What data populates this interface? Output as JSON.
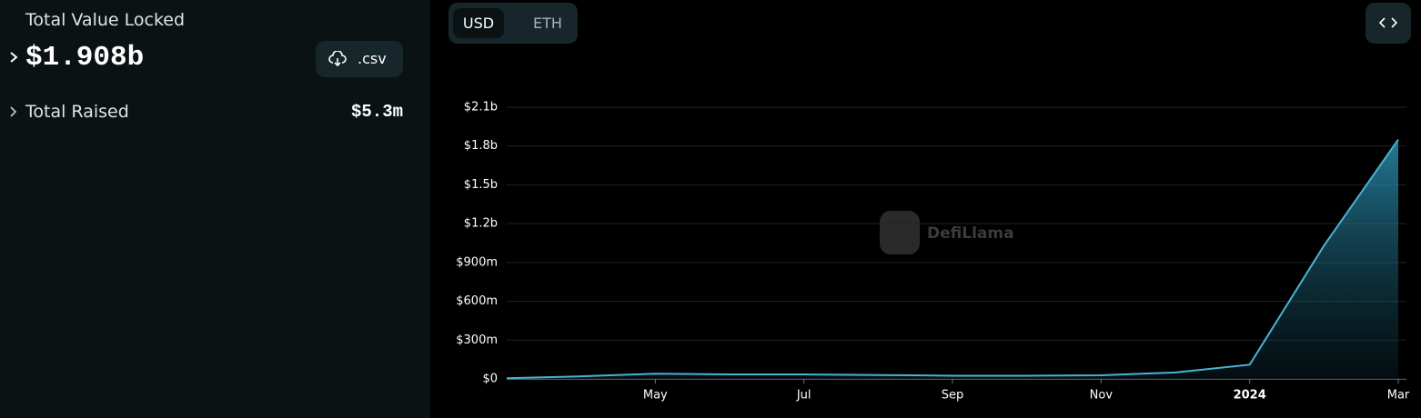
{
  "sidebar": {
    "tvl_label": "Total Value Locked",
    "tvl_value": "$1.908b",
    "csv_button": ".csv",
    "raised_label": "Total Raised",
    "raised_value": "$5.3m"
  },
  "toggle": [
    "USD",
    "ETH"
  ],
  "watermark": "DefiLlama",
  "chart_data": {
    "type": "area",
    "x": [
      "2023-03",
      "2023-04",
      "2023-05",
      "2023-06",
      "2023-07",
      "2023-08",
      "2023-09",
      "2023-10",
      "2023-11",
      "2023-12",
      "2024-01",
      "2024-02",
      "2024-03"
    ],
    "series": [
      {
        "name": "TVL",
        "color": "#4ab3d6",
        "values": [
          5000000,
          20000000,
          40000000,
          35000000,
          35000000,
          30000000,
          25000000,
          25000000,
          28000000,
          50000000,
          110000000,
          1030000000,
          1850000000
        ]
      }
    ],
    "xlim": [
      "2023-03",
      "2024-03"
    ],
    "xticks": [
      {
        "value": "2023-05",
        "label": "May"
      },
      {
        "value": "2023-07",
        "label": "Jul"
      },
      {
        "value": "2023-09",
        "label": "Sep"
      },
      {
        "value": "2023-11",
        "label": "Nov"
      },
      {
        "value": "2024-01",
        "label": "2024"
      },
      {
        "value": "2024-03",
        "label": "Mar"
      }
    ],
    "ylim": [
      0,
      2100000000
    ],
    "yticks": [
      {
        "value": 0,
        "label": "$0"
      },
      {
        "value": 300000000,
        "label": "$300m"
      },
      {
        "value": 600000000,
        "label": "$600m"
      },
      {
        "value": 900000000,
        "label": "$900m"
      },
      {
        "value": 1200000000,
        "label": "$1.2b"
      },
      {
        "value": 1500000000,
        "label": "$1.5b"
      },
      {
        "value": 1800000000,
        "label": "$1.8b"
      },
      {
        "value": 2100000000,
        "label": "$2.1b"
      }
    ],
    "grid": true
  }
}
